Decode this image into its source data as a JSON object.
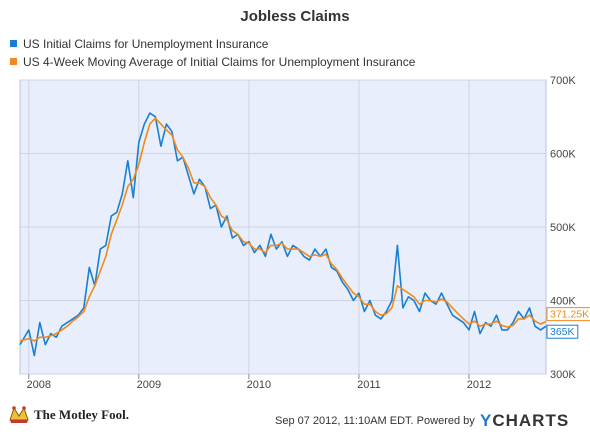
{
  "title": "Jobless Claims",
  "legend": [
    {
      "label": "US Initial Claims for Unemployment Insurance",
      "color": "#1a7fd1"
    },
    {
      "label": "US 4-Week Moving Average of Initial Claims for Unemployment Insurance",
      "color": "#f08a1d"
    }
  ],
  "footer": {
    "brand_left": "The Motley Fool.",
    "timestamp": "Sep 07 2012, 11:10AM EDT.",
    "powered_by": "Powered by",
    "brand_right_y": "Y",
    "brand_right_rest": "CHARTS"
  },
  "chart_data": {
    "type": "line",
    "x_ticks": [
      "2008",
      "2009",
      "2010",
      "2011",
      "2012"
    ],
    "y_ticks": [
      "300K",
      "400K",
      "500K",
      "600K",
      "700K"
    ],
    "ylim": [
      300,
      700
    ],
    "xlim": [
      2007.92,
      2012.7
    ],
    "plot_background": "#e8eefc",
    "grid": true,
    "end_labels": [
      {
        "text": "371.25K",
        "value": 371.25,
        "color": "#f08a1d"
      },
      {
        "text": "365K",
        "value": 365,
        "color": "#1a7fd1"
      }
    ],
    "series": [
      {
        "name": "US Initial Claims for Unemployment Insurance",
        "color": "#1a7fd1",
        "x": [
          2007.92,
          2008.0,
          2008.05,
          2008.1,
          2008.15,
          2008.2,
          2008.25,
          2008.3,
          2008.35,
          2008.4,
          2008.45,
          2008.5,
          2008.55,
          2008.6,
          2008.65,
          2008.7,
          2008.75,
          2008.8,
          2008.85,
          2008.9,
          2008.95,
          2009.0,
          2009.05,
          2009.1,
          2009.15,
          2009.2,
          2009.25,
          2009.3,
          2009.35,
          2009.4,
          2009.45,
          2009.5,
          2009.55,
          2009.6,
          2009.65,
          2009.7,
          2009.75,
          2009.8,
          2009.85,
          2009.9,
          2009.95,
          2010.0,
          2010.05,
          2010.1,
          2010.15,
          2010.2,
          2010.25,
          2010.3,
          2010.35,
          2010.4,
          2010.45,
          2010.5,
          2010.55,
          2010.6,
          2010.65,
          2010.7,
          2010.75,
          2010.8,
          2010.85,
          2010.9,
          2010.95,
          2011.0,
          2011.05,
          2011.1,
          2011.15,
          2011.2,
          2011.25,
          2011.3,
          2011.35,
          2011.4,
          2011.45,
          2011.5,
          2011.55,
          2011.6,
          2011.65,
          2011.7,
          2011.75,
          2011.8,
          2011.85,
          2011.9,
          2011.95,
          2012.0,
          2012.05,
          2012.1,
          2012.15,
          2012.2,
          2012.25,
          2012.3,
          2012.35,
          2012.4,
          2012.45,
          2012.5,
          2012.55,
          2012.6,
          2012.65,
          2012.7
        ],
        "y": [
          340,
          360,
          325,
          370,
          340,
          355,
          350,
          365,
          370,
          375,
          380,
          390,
          445,
          420,
          470,
          475,
          515,
          520,
          545,
          590,
          540,
          615,
          640,
          655,
          650,
          610,
          640,
          630,
          590,
          595,
          570,
          545,
          565,
          555,
          525,
          530,
          500,
          515,
          485,
          490,
          475,
          480,
          465,
          475,
          460,
          490,
          470,
          480,
          460,
          475,
          470,
          460,
          455,
          470,
          460,
          470,
          445,
          440,
          425,
          415,
          400,
          410,
          385,
          400,
          380,
          375,
          385,
          400,
          475,
          390,
          405,
          400,
          385,
          410,
          400,
          395,
          410,
          395,
          380,
          375,
          370,
          360,
          385,
          355,
          370,
          365,
          380,
          360,
          360,
          370,
          385,
          375,
          390,
          365,
          360,
          365
        ]
      },
      {
        "name": "US 4-Week Moving Average of Initial Claims for Unemployment Insurance",
        "color": "#f08a1d",
        "x": [
          2007.92,
          2008.0,
          2008.05,
          2008.1,
          2008.15,
          2008.2,
          2008.25,
          2008.3,
          2008.35,
          2008.4,
          2008.45,
          2008.5,
          2008.55,
          2008.6,
          2008.65,
          2008.7,
          2008.75,
          2008.8,
          2008.85,
          2008.9,
          2008.95,
          2009.0,
          2009.05,
          2009.1,
          2009.15,
          2009.2,
          2009.25,
          2009.3,
          2009.35,
          2009.4,
          2009.45,
          2009.5,
          2009.55,
          2009.6,
          2009.65,
          2009.7,
          2009.75,
          2009.8,
          2009.85,
          2009.9,
          2009.95,
          2010.0,
          2010.05,
          2010.1,
          2010.15,
          2010.2,
          2010.25,
          2010.3,
          2010.35,
          2010.4,
          2010.45,
          2010.5,
          2010.55,
          2010.6,
          2010.65,
          2010.7,
          2010.75,
          2010.8,
          2010.85,
          2010.9,
          2010.95,
          2011.0,
          2011.05,
          2011.1,
          2011.15,
          2011.2,
          2011.25,
          2011.3,
          2011.35,
          2011.4,
          2011.45,
          2011.5,
          2011.55,
          2011.6,
          2011.65,
          2011.7,
          2011.75,
          2011.8,
          2011.85,
          2011.9,
          2011.95,
          2012.0,
          2012.05,
          2012.1,
          2012.15,
          2012.2,
          2012.25,
          2012.3,
          2012.35,
          2012.4,
          2012.45,
          2012.5,
          2012.55,
          2012.6,
          2012.65,
          2012.7
        ],
        "y": [
          345,
          348,
          345,
          350,
          350,
          352,
          355,
          360,
          365,
          372,
          378,
          385,
          405,
          420,
          440,
          460,
          490,
          510,
          530,
          555,
          565,
          585,
          615,
          640,
          648,
          640,
          632,
          625,
          605,
          595,
          580,
          560,
          560,
          555,
          540,
          530,
          515,
          510,
          495,
          490,
          480,
          478,
          470,
          470,
          465,
          475,
          475,
          478,
          470,
          470,
          470,
          465,
          460,
          462,
          460,
          463,
          450,
          442,
          430,
          420,
          410,
          405,
          395,
          395,
          385,
          380,
          382,
          390,
          420,
          415,
          410,
          405,
          395,
          400,
          400,
          398,
          402,
          398,
          390,
          382,
          375,
          368,
          372,
          365,
          368,
          368,
          372,
          366,
          364,
          366,
          375,
          375,
          380,
          372,
          368,
          371.25
        ]
      }
    ]
  }
}
